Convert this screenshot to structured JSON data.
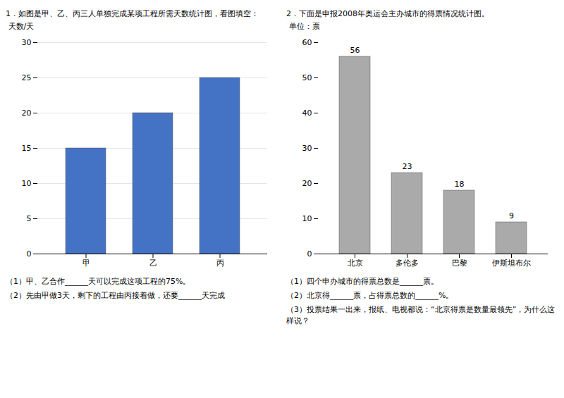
{
  "chart_data": [
    {
      "type": "bar",
      "categories": [
        "甲",
        "乙",
        "丙"
      ],
      "values": [
        15,
        20,
        25
      ],
      "color": "#4472c4",
      "ylabel": "天数/天",
      "ylim": [
        0,
        30
      ],
      "yticks": [
        0,
        5,
        10,
        15,
        20,
        25,
        30
      ],
      "grid": true,
      "annotations": [
        "1．如图是甲、乙、丙三人单独完成某项工程所需天数统计图，看图填空：",
        "（1）甲、乙合作______天可以完成这项工程的75%。",
        "（2）先由甲做3天，剩下的工程由丙接着做，还要______天完成"
      ]
    },
    {
      "type": "bar",
      "categories": [
        "北京",
        "多伦多",
        "巴黎",
        "伊斯坦布尔"
      ],
      "values": [
        56,
        23,
        18,
        9
      ],
      "color": "#aaaaaa",
      "ylabel": "单位：票",
      "ylim": [
        0,
        60
      ],
      "yticks": [
        0,
        10,
        20,
        30,
        40,
        50,
        60
      ],
      "grid": false,
      "data_labels": true,
      "annotations": [
        "2．下面是申报2008年奥运会主办城市的得票情况统计图。",
        "（1）四个申办城市的得票总数是______票。",
        "（2）北京得______票，占得票总数的______%。",
        "（3）投票结果一出来，报纸、电视都说：“北京得票是数量最领先”，为什么这样说？"
      ]
    }
  ]
}
